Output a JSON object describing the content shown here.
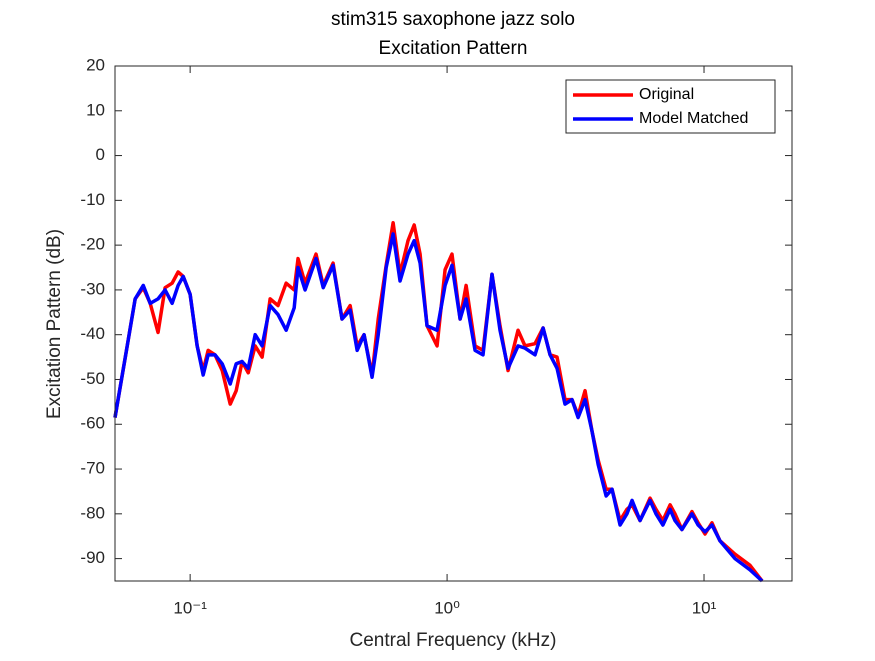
{
  "chart_data": {
    "type": "line",
    "title": "stim315 saxophone jazz solo",
    "subtitle": "Excitation Pattern",
    "x_label": "Central Frequency (kHz)",
    "y_label": "Excitation Pattern (dB)",
    "x_scale": "log",
    "xlim": [
      0.051,
      22
    ],
    "ylim": [
      -95,
      20
    ],
    "xticks": [
      {
        "value": 0.1,
        "label": "10⁻¹"
      },
      {
        "value": 1,
        "label": "10⁰"
      },
      {
        "value": 10,
        "label": "10¹"
      }
    ],
    "yticks": [
      -90,
      -80,
      -70,
      -60,
      -50,
      -40,
      -30,
      -20,
      -10,
      0,
      10,
      20
    ],
    "grid": false,
    "legend": "northeast",
    "x": [
      0.051,
      0.0569,
      0.0611,
      0.0657,
      0.0699,
      0.075,
      0.0799,
      0.0851,
      0.0898,
      0.094,
      0.1,
      0.1065,
      0.1124,
      0.1175,
      0.125,
      0.1333,
      0.1432,
      0.1511,
      0.1593,
      0.1683,
      0.1791,
      0.1906,
      0.2048,
      0.2198,
      0.2364,
      0.2541,
      0.263,
      0.2801,
      0.309,
      0.3296,
      0.36,
      0.39,
      0.4195,
      0.4467,
      0.4753,
      0.5105,
      0.5395,
      0.5794,
      0.6166,
      0.6561,
      0.7047,
      0.7447,
      0.7852,
      0.8356,
      0.9141,
      0.9822,
      1.045,
      1.124,
      1.186,
      1.285,
      1.38,
      1.496,
      1.607,
      1.727,
      1.889,
      2.01,
      2.199,
      2.364,
      2.517,
      2.679,
      2.877,
      3.064,
      3.236,
      3.443,
      3.664,
      3.873,
      4.159,
      4.385,
      4.712,
      5.012,
      5.248,
      5.636,
      6.166,
      6.501,
      6.918,
      7.379,
      7.709,
      8.204,
      8.974,
      9.484,
      10.09,
      10.74,
      11.53,
      13.2,
      15.1,
      16.83
    ],
    "series": [
      {
        "name": "Original",
        "color": "#ff0000",
        "values": [
          -58.5,
          -42.5,
          -32,
          -29.5,
          -33,
          -39.5,
          -29.5,
          -28.5,
          -26,
          -27,
          -31,
          -42.5,
          -48,
          -43.5,
          -44.5,
          -48,
          -55.5,
          -52.5,
          -46,
          -48.5,
          -42.5,
          -45,
          -32,
          -33.5,
          -28.5,
          -30,
          -23,
          -28.5,
          -22,
          -29,
          -24,
          -36.5,
          -33.5,
          -42.5,
          -40,
          -49,
          -36.5,
          -24.5,
          -15,
          -26.5,
          -19,
          -15.5,
          -22,
          -38,
          -42.5,
          -25.5,
          -22,
          -36.5,
          -29,
          -42.5,
          -43.5,
          -26.5,
          -38,
          -48,
          -39,
          -42.5,
          -42,
          -38.5,
          -44.5,
          -45,
          -54.5,
          -54.5,
          -58,
          -52.5,
          -61.5,
          -68,
          -74.5,
          -74.5,
          -81.5,
          -79,
          -78,
          -81.5,
          -76.5,
          -79,
          -81.5,
          -78,
          -80,
          -83.5,
          -79.5,
          -82,
          -84.5,
          -82,
          -86,
          -89,
          -91.5,
          -95
        ]
      },
      {
        "name": "Model Matched",
        "color": "#0000ff",
        "values": [
          -58.5,
          -42.5,
          -32,
          -29,
          -33,
          -32,
          -30,
          -33,
          -29,
          -27,
          -31,
          -42.5,
          -49,
          -44.5,
          -44.5,
          -46.5,
          -51,
          -46.5,
          -46,
          -47.5,
          -40,
          -42.5,
          -33.5,
          -35.5,
          -39,
          -34,
          -25,
          -30,
          -23,
          -29.5,
          -24.5,
          -36.5,
          -34.5,
          -43.5,
          -40,
          -49.5,
          -40,
          -25,
          -17.5,
          -28,
          -22,
          -19,
          -24,
          -38,
          -39,
          -29,
          -24.5,
          -36.5,
          -32,
          -43.5,
          -44.5,
          -26.5,
          -39,
          -47.5,
          -42.5,
          -43,
          -44.5,
          -38.5,
          -44.5,
          -47.5,
          -55.5,
          -54.5,
          -58.5,
          -54.5,
          -61.5,
          -69,
          -76,
          -74.5,
          -82.5,
          -80,
          -77,
          -81.5,
          -77,
          -80,
          -82.5,
          -79,
          -81.5,
          -83.5,
          -80,
          -82.5,
          -84,
          -82.5,
          -86,
          -90,
          -92.5,
          -95
        ]
      }
    ]
  }
}
